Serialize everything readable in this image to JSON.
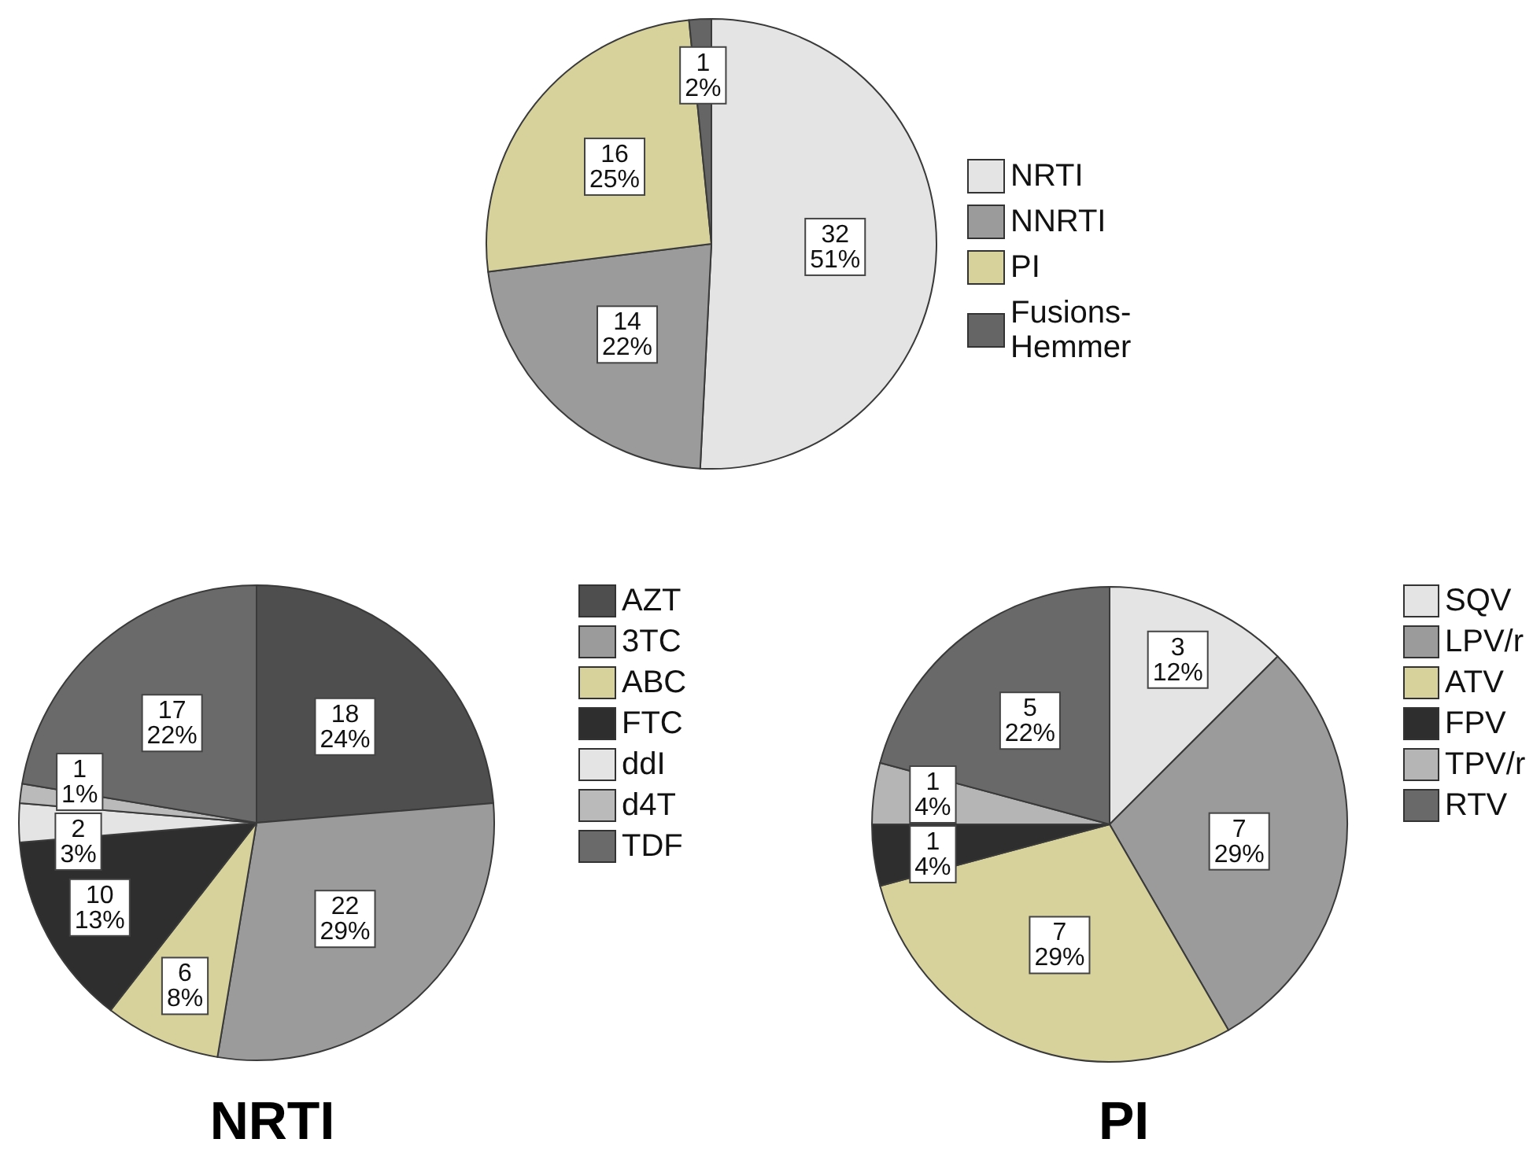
{
  "chart_data": [
    {
      "type": "pie",
      "categories": [
        "NRTI",
        "NNRTI",
        "PI",
        "Fusions-Hemmer"
      ],
      "values": [
        32,
        14,
        16,
        1
      ],
      "colors": [
        "#e4e4e4",
        "#9b9b9b",
        "#d7d29b",
        "#656565"
      ],
      "value_labels": [
        "32\n51%",
        "14\n22%",
        "16\n25%",
        "1\n2%"
      ],
      "legend": "right"
    },
    {
      "type": "pie",
      "title": "NRTI",
      "categories": [
        "AZT",
        "3TC",
        "ABC",
        "FTC",
        "ddI",
        "d4T",
        "TDF"
      ],
      "values": [
        18,
        22,
        6,
        10,
        2,
        1,
        17
      ],
      "colors": [
        "#4e4e4e",
        "#9b9b9b",
        "#d7d29b",
        "#2e2e2e",
        "#e4e4e4",
        "#bababa",
        "#6a6a6a"
      ],
      "value_labels": [
        "18\n24%",
        "22\n29%",
        "6\n8%",
        "10\n13%",
        "2\n3%",
        "1\n1%",
        "17\n22%"
      ],
      "legend": "right"
    },
    {
      "type": "pie",
      "title": "PI",
      "categories": [
        "SQV",
        "LPV/r",
        "ATV",
        "FPV",
        "TPV/r",
        "RTV"
      ],
      "values": [
        3,
        7,
        7,
        1,
        1,
        5
      ],
      "colors": [
        "#e4e4e4",
        "#9b9b9b",
        "#d7d29b",
        "#2e2e2e",
        "#b5b5b5",
        "#696969"
      ],
      "value_labels": [
        "3\n12%",
        "7\n29%",
        "7\n29%",
        "1\n4%",
        "1\n4%",
        "5\n22%"
      ],
      "legend": "right"
    }
  ]
}
